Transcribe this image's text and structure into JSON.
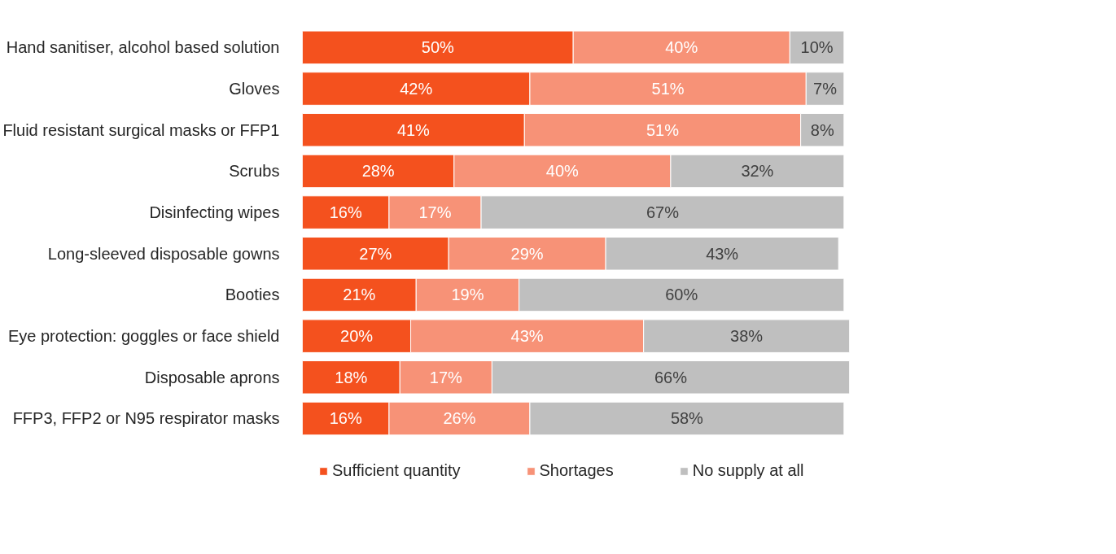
{
  "chart_data": {
    "type": "bar",
    "orientation": "horizontal",
    "stacked": true,
    "data_labels": true,
    "grid": false,
    "legend": "bottom",
    "categories": [
      "Hand sanitiser, alcohol based solution",
      "Gloves",
      "Fluid resistant surgical masks or FFP1",
      "Scrubs",
      "Disinfecting wipes",
      "Long-sleeved disposable gowns",
      "Booties",
      "Eye protection: goggles or face shield",
      "Disposable aprons",
      "FFP3, FFP2 or N95 respirator masks"
    ],
    "series": [
      {
        "name": "Sufficient quantity",
        "color": "#f4511e",
        "values": [
          50,
          42,
          41,
          28,
          16,
          27,
          21,
          20,
          18,
          16
        ],
        "value_labels": [
          "50%",
          "42%",
          "41%",
          "28%",
          "16%",
          "27%",
          "21%",
          "20%",
          "18%",
          "16%"
        ]
      },
      {
        "name": "Shortages",
        "color": "#f79277",
        "values": [
          40,
          51,
          51,
          40,
          17,
          29,
          19,
          43,
          17,
          26
        ],
        "value_labels": [
          "40%",
          "51%",
          "51%",
          "40%",
          "17%",
          "29%",
          "19%",
          "43%",
          "17%",
          "26%"
        ]
      },
      {
        "name": "No supply at all",
        "color": "#bfbfbf",
        "values": [
          10,
          7,
          8,
          32,
          67,
          43,
          60,
          38,
          66,
          58
        ],
        "value_labels": [
          "10%",
          "7%",
          "8%",
          "32%",
          "67%",
          "43%",
          "60%",
          "38%",
          "66%",
          "58%"
        ]
      }
    ]
  }
}
